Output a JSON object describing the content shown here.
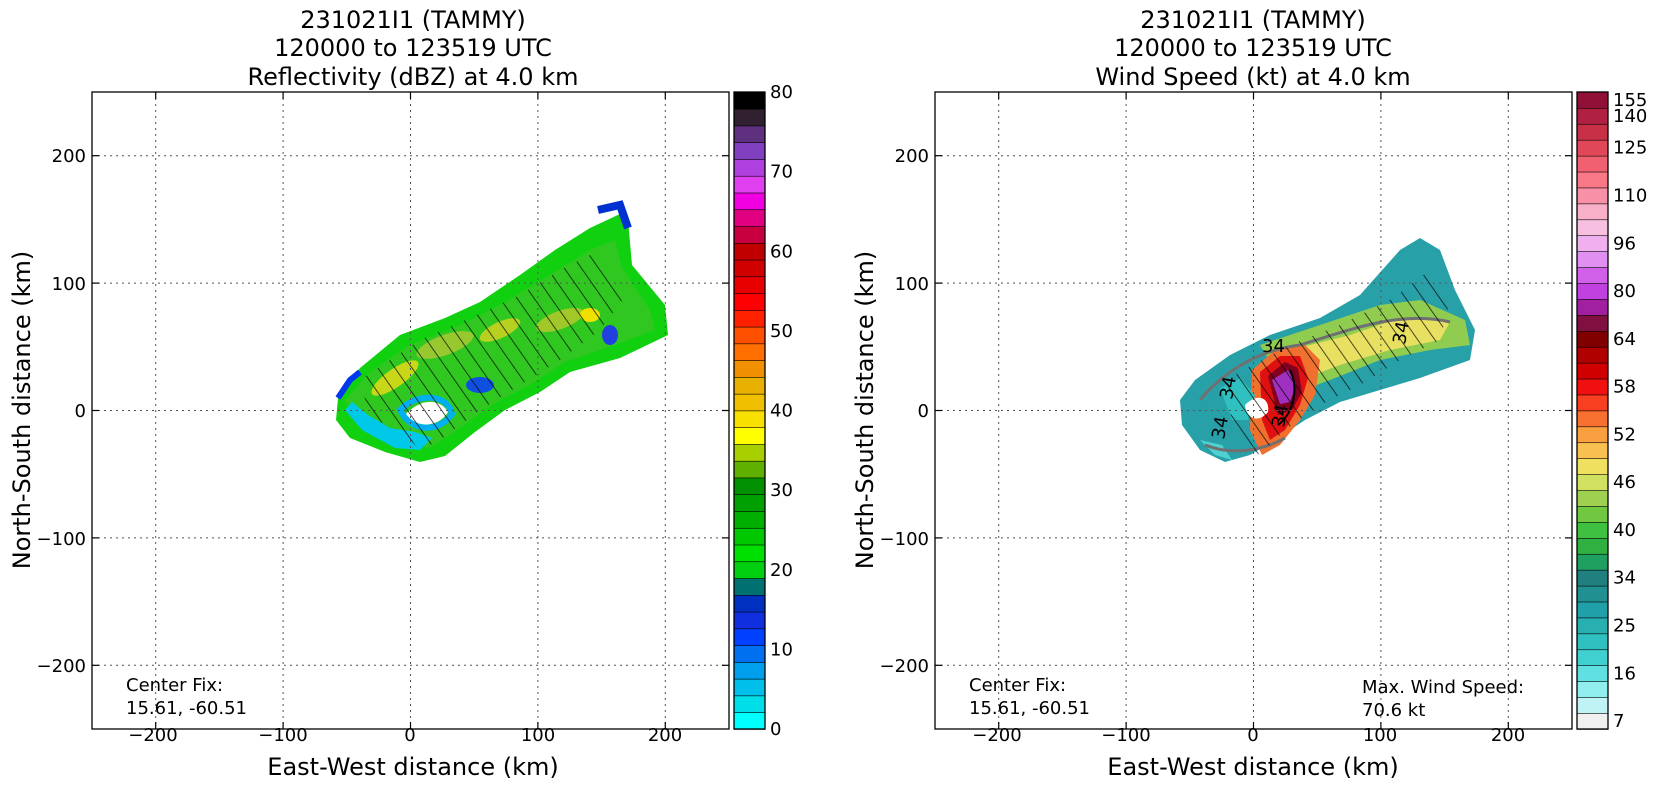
{
  "chart_data": [
    {
      "type": "heatmap",
      "title": [
        "231021I1 (TAMMY)",
        "120000 to 123519 UTC",
        "Reflectivity (dBZ) at 4.0 km"
      ],
      "xlabel": "East-West distance (km)",
      "ylabel": "North-South distance (km)",
      "xlim": [
        -250,
        250
      ],
      "ylim": [
        -250,
        250
      ],
      "xticks": [
        "−200",
        "−100",
        "0",
        "100",
        "200"
      ],
      "yticks": [
        "200",
        "100",
        "0",
        "−100",
        "−200"
      ],
      "grid": true,
      "colorbar": {
        "range": [
          0,
          80
        ],
        "tick_labels": [
          "0",
          "10",
          "20",
          "30",
          "40",
          "50",
          "60",
          "70",
          "80"
        ],
        "colors": [
          "#00ffff",
          "#00dfe8",
          "#00bfea",
          "#009fee",
          "#0070f0",
          "#0040ff",
          "#1030e0",
          "#0030c0",
          "#007070",
          "#00d010",
          "#00e000",
          "#00c800",
          "#00b000",
          "#00a000",
          "#009000",
          "#60b000",
          "#a8d000",
          "#ffff00",
          "#f8e000",
          "#f0c000",
          "#e8b000",
          "#f09000",
          "#ff7000",
          "#ff5000",
          "#ff2000",
          "#ff0000",
          "#e80000",
          "#d00000",
          "#c00000",
          "#c80040",
          "#e00080",
          "#f000e0",
          "#e040f0",
          "#b040e0",
          "#8040c0",
          "#603080",
          "#302030",
          "#000000"
        ]
      },
      "annotations": {
        "center_fix_label": "Center Fix:",
        "center_fix_value": "15.61, -60.51"
      }
    },
    {
      "type": "heatmap",
      "title": [
        "231021I1 (TAMMY)",
        "120000 to 123519 UTC",
        "Wind Speed (kt) at 4.0 km"
      ],
      "xlabel": "East-West distance (km)",
      "ylabel": "North-South distance (km)",
      "xlim": [
        -250,
        250
      ],
      "ylim": [
        -250,
        250
      ],
      "xticks": [
        "−200",
        "−100",
        "0",
        "100",
        "200"
      ],
      "yticks": [
        "200",
        "100",
        "0",
        "−100",
        "−200"
      ],
      "grid": true,
      "contour_labels": [
        "34",
        "34",
        "34",
        "34",
        "34"
      ],
      "colorbar": {
        "tick_labels": [
          "7",
          "16",
          "25",
          "34",
          "40",
          "46",
          "52",
          "58",
          "64",
          "80",
          "96",
          "110",
          "125",
          "140",
          "155"
        ],
        "colors": [
          "#f0f0f0",
          "#c0f4f4",
          "#90eeee",
          "#60e0e0",
          "#40d0d0",
          "#30c0c0",
          "#28b0b0",
          "#20a0a8",
          "#209090",
          "#208080",
          "#20a060",
          "#30b040",
          "#40c040",
          "#70c840",
          "#a0d050",
          "#d0e060",
          "#f0e060",
          "#f8c050",
          "#f8a040",
          "#f87030",
          "#f84020",
          "#f01010",
          "#d00000",
          "#b00000",
          "#800000",
          "#801040",
          "#a020a0",
          "#c040e0",
          "#d060e8",
          "#e090f0",
          "#f0b0f0",
          "#f8c0e0",
          "#f8b0c8",
          "#f890a8",
          "#f87888",
          "#f06070",
          "#e04858",
          "#c83048",
          "#b02040",
          "#901038"
        ]
      },
      "annotations": {
        "center_fix_label": "Center Fix:",
        "center_fix_value": "15.61, -60.51",
        "max_wind_label": "Max. Wind Speed:",
        "max_wind_value": "70.6 kt"
      }
    }
  ]
}
